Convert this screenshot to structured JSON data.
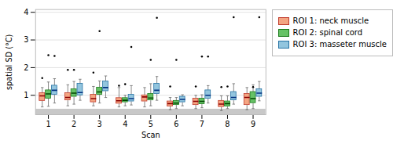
{
  "chart_data": {
    "type": "boxplot",
    "xlabel": "Scan",
    "ylabel": "spatial SD (°C)",
    "x": [
      1,
      2,
      3,
      4,
      5,
      6,
      7,
      8,
      9
    ],
    "xlim": [
      0.5,
      9.5
    ],
    "xticks": [
      1,
      2,
      3,
      4,
      5,
      6,
      7,
      8,
      9
    ],
    "ylim": [
      0.3,
      4.1
    ],
    "yticks": [
      1,
      2,
      3,
      4
    ],
    "grid": "y",
    "legend": "right",
    "band": {
      "from": 0.3,
      "to": 0.5,
      "color": "#C8C8C8"
    },
    "whisker_color": "#666666",
    "series": [
      {
        "name": "ROI 1: neck muscle",
        "color": "#F4A582",
        "edge_color": "#C0392B",
        "median_color": "#8B0000",
        "whislo": [
          0.58,
          0.62,
          0.62,
          0.58,
          0.58,
          0.48,
          0.52,
          0.45,
          0.48
        ],
        "q1": [
          0.8,
          0.82,
          0.75,
          0.7,
          0.78,
          0.6,
          0.65,
          0.58,
          0.65
        ],
        "med": [
          0.98,
          0.92,
          0.88,
          0.8,
          0.94,
          0.7,
          0.78,
          0.68,
          0.92
        ],
        "q3": [
          1.08,
          1.08,
          1.02,
          0.9,
          1.0,
          0.78,
          0.88,
          0.8,
          1.05
        ],
        "whishi": [
          1.28,
          1.38,
          1.32,
          1.28,
          1.28,
          0.92,
          1.0,
          0.98,
          1.28
        ],
        "fliers": [
          1.62,
          1.92,
          1.82,
          1.35,
          null,
          1.32,
          1.32,
          1.3,
          null
        ]
      },
      {
        "name": "ROI 2: spinal cord",
        "color": "#66C266",
        "edge_color": "#1A7A1A",
        "median_color": "#004400",
        "whislo": [
          0.6,
          0.68,
          0.72,
          0.62,
          0.62,
          0.52,
          0.55,
          0.52,
          0.52
        ],
        "q1": [
          0.88,
          0.95,
          1.02,
          0.75,
          0.82,
          0.65,
          0.68,
          0.6,
          0.72
        ],
        "med": [
          1.05,
          1.08,
          1.12,
          0.82,
          0.9,
          0.72,
          0.78,
          0.7,
          0.88
        ],
        "q3": [
          1.18,
          1.22,
          1.28,
          0.9,
          1.05,
          0.8,
          0.88,
          0.78,
          1.12
        ],
        "whishi": [
          1.48,
          1.5,
          1.52,
          1.0,
          1.42,
          0.92,
          1.02,
          0.98,
          1.38
        ],
        "fliers": [
          2.45,
          1.92,
          3.32,
          1.4,
          2.28,
          2.28,
          2.4,
          1.32,
          1.3
        ]
      },
      {
        "name": "ROI 3: masseter muscle",
        "color": "#92C5DE",
        "edge_color": "#2471A3",
        "median_color": "#003080",
        "whislo": [
          0.72,
          0.82,
          0.92,
          0.65,
          0.82,
          0.62,
          0.72,
          0.68,
          0.8
        ],
        "q1": [
          1.02,
          1.0,
          1.15,
          0.78,
          1.05,
          0.75,
          0.88,
          0.82,
          0.95
        ],
        "med": [
          1.18,
          1.1,
          1.28,
          0.88,
          1.18,
          0.85,
          1.0,
          0.92,
          1.08
        ],
        "q3": [
          1.35,
          1.42,
          1.5,
          1.02,
          1.42,
          0.95,
          1.18,
          1.12,
          1.22
        ],
        "whishi": [
          1.6,
          1.58,
          1.7,
          1.35,
          1.68,
          1.02,
          1.35,
          1.42,
          1.5
        ],
        "fliers": [
          2.42,
          null,
          null,
          2.75,
          3.8,
          null,
          2.4,
          3.82,
          3.82
        ]
      }
    ]
  }
}
